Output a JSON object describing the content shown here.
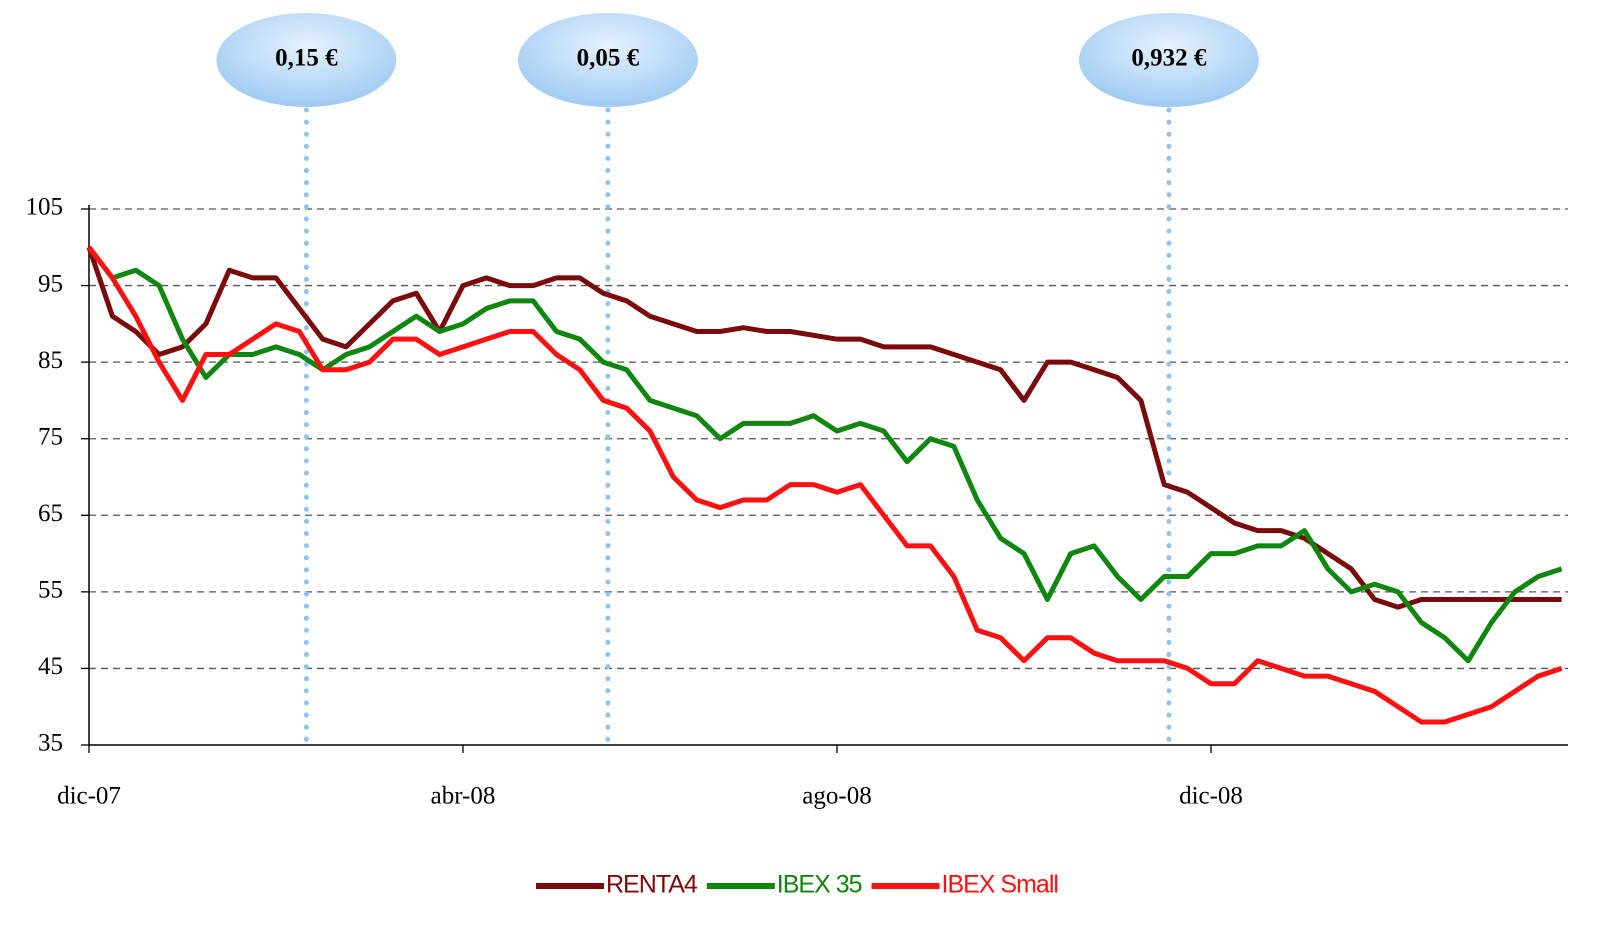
{
  "chart_data": {
    "type": "line",
    "categories": [
      "dic-07",
      null,
      null,
      null,
      null,
      null,
      null,
      null,
      null,
      null,
      null,
      null,
      null,
      null,
      null,
      null,
      "abr-08",
      null,
      null,
      null,
      null,
      null,
      null,
      null,
      null,
      null,
      null,
      null,
      null,
      null,
      null,
      null,
      "ago-08",
      null,
      null,
      null,
      null,
      null,
      null,
      null,
      null,
      null,
      null,
      null,
      null,
      null,
      null,
      null,
      "dic-08",
      null,
      null,
      null,
      null,
      null,
      null,
      null,
      null,
      null,
      null,
      null,
      null,
      null,
      null,
      null
    ],
    "ylim": [
      35,
      105
    ],
    "yticks": [
      35,
      45,
      55,
      65,
      75,
      85,
      95,
      105
    ],
    "grid": true,
    "legend": "bottom",
    "series": [
      {
        "name": "RENTA4",
        "color": "#7b0a0a",
        "values": [
          100,
          91,
          89,
          86,
          87,
          90,
          97,
          96,
          96,
          92,
          88,
          87,
          90,
          93,
          94,
          89,
          95,
          96,
          95,
          95,
          96,
          96,
          94,
          93,
          91,
          90,
          89,
          89,
          89.5,
          89,
          89,
          88.5,
          88,
          88,
          87,
          87,
          87,
          86,
          85,
          84,
          80,
          85,
          85,
          84,
          83,
          80,
          69,
          68,
          66,
          64,
          63,
          63,
          62,
          60,
          58,
          54,
          53,
          54,
          54,
          54,
          54,
          54,
          54,
          54
        ]
      },
      {
        "name": "IBEX 35",
        "color": "#0f870f",
        "values": [
          100,
          96,
          97,
          95,
          88,
          83,
          86,
          86,
          87,
          86,
          84,
          86,
          87,
          89,
          91,
          89,
          90,
          92,
          93,
          93,
          89,
          88,
          85,
          84,
          80,
          79,
          78,
          75,
          77,
          77,
          77,
          78,
          76,
          77,
          76,
          72,
          75,
          74,
          67,
          62,
          60,
          54,
          60,
          61,
          57,
          54,
          57,
          57,
          60,
          60,
          61,
          61,
          63,
          58,
          55,
          56,
          55,
          51,
          49,
          46,
          51,
          55,
          57,
          58
        ]
      },
      {
        "name": "IBEX Small",
        "color": "#ff1010",
        "values": [
          100,
          96,
          91,
          85,
          80,
          86,
          86,
          88,
          90,
          89,
          84,
          84,
          85,
          88,
          88,
          86,
          87,
          88,
          89,
          89,
          86,
          84,
          80,
          79,
          76,
          70,
          67,
          66,
          67,
          67,
          69,
          69,
          68,
          69,
          65,
          61,
          61,
          57,
          50,
          49,
          46,
          49,
          49,
          47,
          46,
          46,
          46,
          45,
          43,
          43,
          46,
          45,
          44,
          44,
          43,
          42,
          40,
          38,
          38,
          39,
          40,
          42,
          44,
          45
        ]
      }
    ],
    "annotations": [
      {
        "text": "0,15 €",
        "x": 9.3
      },
      {
        "text": "0,05 €",
        "x": 22.2
      },
      {
        "text": "0,932 €",
        "x": 46.2
      }
    ]
  }
}
